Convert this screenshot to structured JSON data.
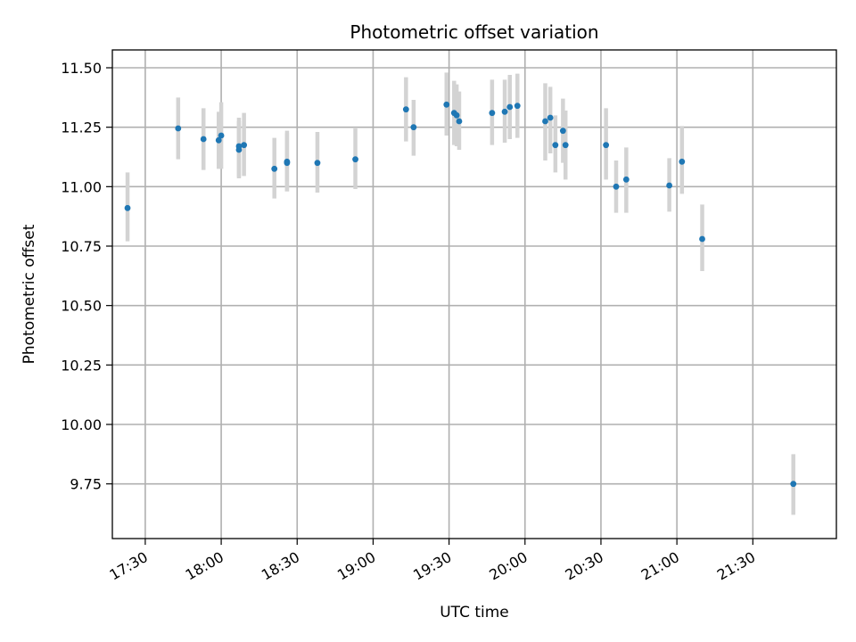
{
  "chart_data": {
    "type": "scatter",
    "title": "Photometric offset variation",
    "xlabel": "UTC time",
    "ylabel": "Photometric offset",
    "x_axis_kind": "time (UTC)",
    "xlim": [
      "17:17",
      "22:03"
    ],
    "ylim": [
      9.52,
      11.575
    ],
    "xticks": [
      "17:30",
      "18:00",
      "18:30",
      "19:00",
      "19:30",
      "20:00",
      "20:30",
      "21:00",
      "21:30"
    ],
    "yticks": [
      "9.75",
      "10.00",
      "10.25",
      "10.50",
      "10.75",
      "11.00",
      "11.25",
      "11.50"
    ],
    "grid": true,
    "colors": {
      "point": "#1f77b4",
      "error_bar": "#d3d3d3",
      "grid": "#b0b0b0"
    },
    "points": [
      {
        "t": "17:23",
        "y": 10.91,
        "lo": 10.77,
        "hi": 11.06
      },
      {
        "t": "17:43",
        "y": 11.245,
        "lo": 11.115,
        "hi": 11.375
      },
      {
        "t": "17:53",
        "y": 11.2,
        "lo": 11.07,
        "hi": 11.33
      },
      {
        "t": "17:59",
        "y": 11.195,
        "lo": 11.075,
        "hi": 11.315
      },
      {
        "t": "18:00",
        "y": 11.215,
        "lo": 11.075,
        "hi": 11.355
      },
      {
        "t": "18:07",
        "y": 11.155,
        "lo": 11.035,
        "hi": 11.275
      },
      {
        "t": "18:07",
        "y": 11.17,
        "lo": 11.04,
        "hi": 11.29
      },
      {
        "t": "18:09",
        "y": 11.175,
        "lo": 11.045,
        "hi": 11.31
      },
      {
        "t": "18:21",
        "y": 11.075,
        "lo": 10.95,
        "hi": 11.205
      },
      {
        "t": "18:26",
        "y": 11.1,
        "lo": 10.98,
        "hi": 11.225
      },
      {
        "t": "18:26",
        "y": 11.105,
        "lo": 10.98,
        "hi": 11.235
      },
      {
        "t": "18:38",
        "y": 11.1,
        "lo": 10.975,
        "hi": 11.23
      },
      {
        "t": "18:53",
        "y": 11.115,
        "lo": 10.99,
        "hi": 11.245
      },
      {
        "t": "19:13",
        "y": 11.325,
        "lo": 11.19,
        "hi": 11.46
      },
      {
        "t": "19:16",
        "y": 11.25,
        "lo": 11.13,
        "hi": 11.365
      },
      {
        "t": "19:29",
        "y": 11.345,
        "lo": 11.215,
        "hi": 11.48
      },
      {
        "t": "19:32",
        "y": 11.31,
        "lo": 11.175,
        "hi": 11.445
      },
      {
        "t": "19:33",
        "y": 11.3,
        "lo": 11.17,
        "hi": 11.43
      },
      {
        "t": "19:34",
        "y": 11.275,
        "lo": 11.155,
        "hi": 11.4
      },
      {
        "t": "19:47",
        "y": 11.31,
        "lo": 11.175,
        "hi": 11.45
      },
      {
        "t": "19:52",
        "y": 11.315,
        "lo": 11.185,
        "hi": 11.45
      },
      {
        "t": "19:54",
        "y": 11.335,
        "lo": 11.2,
        "hi": 11.47
      },
      {
        "t": "19:57",
        "y": 11.34,
        "lo": 11.205,
        "hi": 11.475
      },
      {
        "t": "20:08",
        "y": 11.275,
        "lo": 11.11,
        "hi": 11.435
      },
      {
        "t": "20:10",
        "y": 11.29,
        "lo": 11.14,
        "hi": 11.42
      },
      {
        "t": "20:12",
        "y": 11.175,
        "lo": 11.06,
        "hi": 11.3
      },
      {
        "t": "20:15",
        "y": 11.235,
        "lo": 11.1,
        "hi": 11.37
      },
      {
        "t": "20:16",
        "y": 11.175,
        "lo": 11.03,
        "hi": 11.32
      },
      {
        "t": "20:32",
        "y": 11.175,
        "lo": 11.03,
        "hi": 11.33
      },
      {
        "t": "20:36",
        "y": 11.0,
        "lo": 10.89,
        "hi": 11.11
      },
      {
        "t": "20:40",
        "y": 11.03,
        "lo": 10.89,
        "hi": 11.165
      },
      {
        "t": "20:57",
        "y": 11.005,
        "lo": 10.895,
        "hi": 11.12
      },
      {
        "t": "21:02",
        "y": 11.105,
        "lo": 10.97,
        "hi": 11.255
      },
      {
        "t": "21:10",
        "y": 10.78,
        "lo": 10.645,
        "hi": 10.925
      },
      {
        "t": "21:46",
        "y": 9.75,
        "lo": 9.62,
        "hi": 9.875
      }
    ]
  }
}
